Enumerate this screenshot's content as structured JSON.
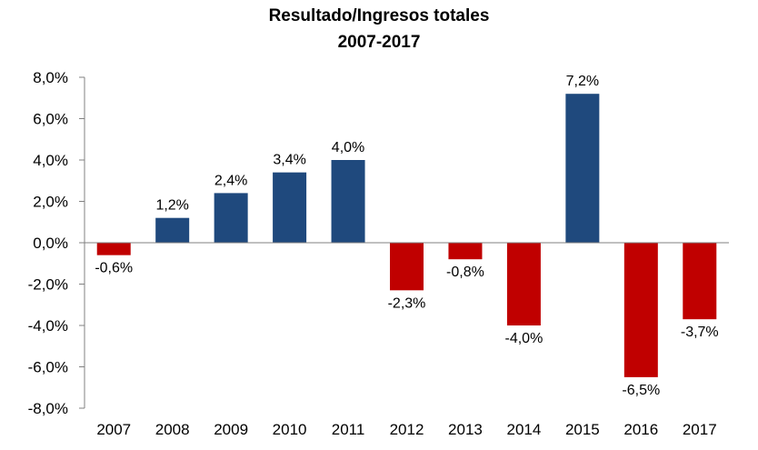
{
  "chart_data": {
    "type": "bar",
    "title": "Resultado/Ingresos totales",
    "subtitle": "2007-2017",
    "xlabel": "",
    "ylabel": "",
    "categories": [
      "2007",
      "2008",
      "2009",
      "2010",
      "2011",
      "2012",
      "2013",
      "2014",
      "2015",
      "2016",
      "2017"
    ],
    "values": [
      -0.6,
      1.2,
      2.4,
      3.4,
      4.0,
      -2.3,
      -0.8,
      -4.0,
      7.2,
      -6.5,
      -3.7
    ],
    "data_labels": [
      "-0,6%",
      "1,2%",
      "2,4%",
      "3,4%",
      "4,0%",
      "-2,3%",
      "-0,8%",
      "-4,0%",
      "7,2%",
      "-6,5%",
      "-3,7%"
    ],
    "ylim": [
      -8,
      8
    ],
    "yticks": [
      8,
      6,
      4,
      2,
      0,
      -2,
      -4,
      -6,
      -8
    ],
    "ytick_labels": [
      "8,0%",
      "6,0%",
      "4,0%",
      "2,0%",
      "0,0%",
      "-2,0%",
      "-4,0%",
      "-6,0%",
      "-8,0%"
    ],
    "grid": false,
    "legend": "none",
    "colors": {
      "positive": "#1F497D",
      "negative": "#C00000"
    }
  }
}
